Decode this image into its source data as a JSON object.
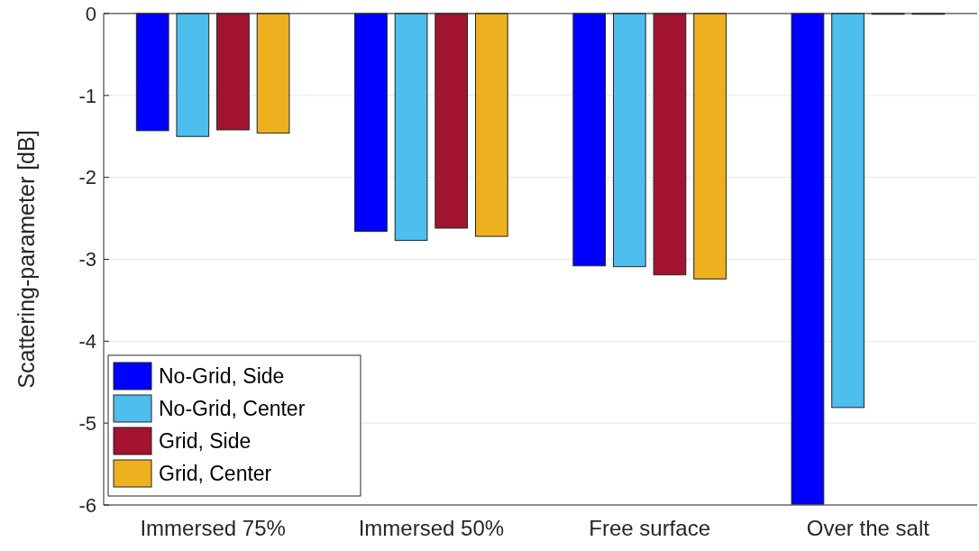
{
  "chart_data": {
    "type": "bar",
    "ylabel": "Scattering-parameter [dB]",
    "categories": [
      "Immersed 75%",
      "Immersed 50%",
      "Free surface",
      "Over the salt"
    ],
    "series": [
      {
        "name": "No-Grid, Side",
        "color": "#0000ff",
        "values": [
          -1.43,
          -2.66,
          -3.08,
          -5.99
        ]
      },
      {
        "name": "No-Grid, Center",
        "color": "#4dbeee",
        "values": [
          -1.5,
          -2.77,
          -3.09,
          -4.81
        ]
      },
      {
        "name": "Grid, Side",
        "color": "#a2142f",
        "values": [
          -1.42,
          -2.62,
          -3.19,
          0
        ]
      },
      {
        "name": "Grid, Center",
        "color": "#edb120",
        "values": [
          -1.46,
          -2.72,
          -3.24,
          0
        ]
      }
    ],
    "ylim": [
      -6,
      0
    ],
    "yticks": [
      -6,
      -5,
      -4,
      -3,
      -2,
      -1,
      0
    ],
    "grid": "y",
    "legend": "bottom left"
  }
}
